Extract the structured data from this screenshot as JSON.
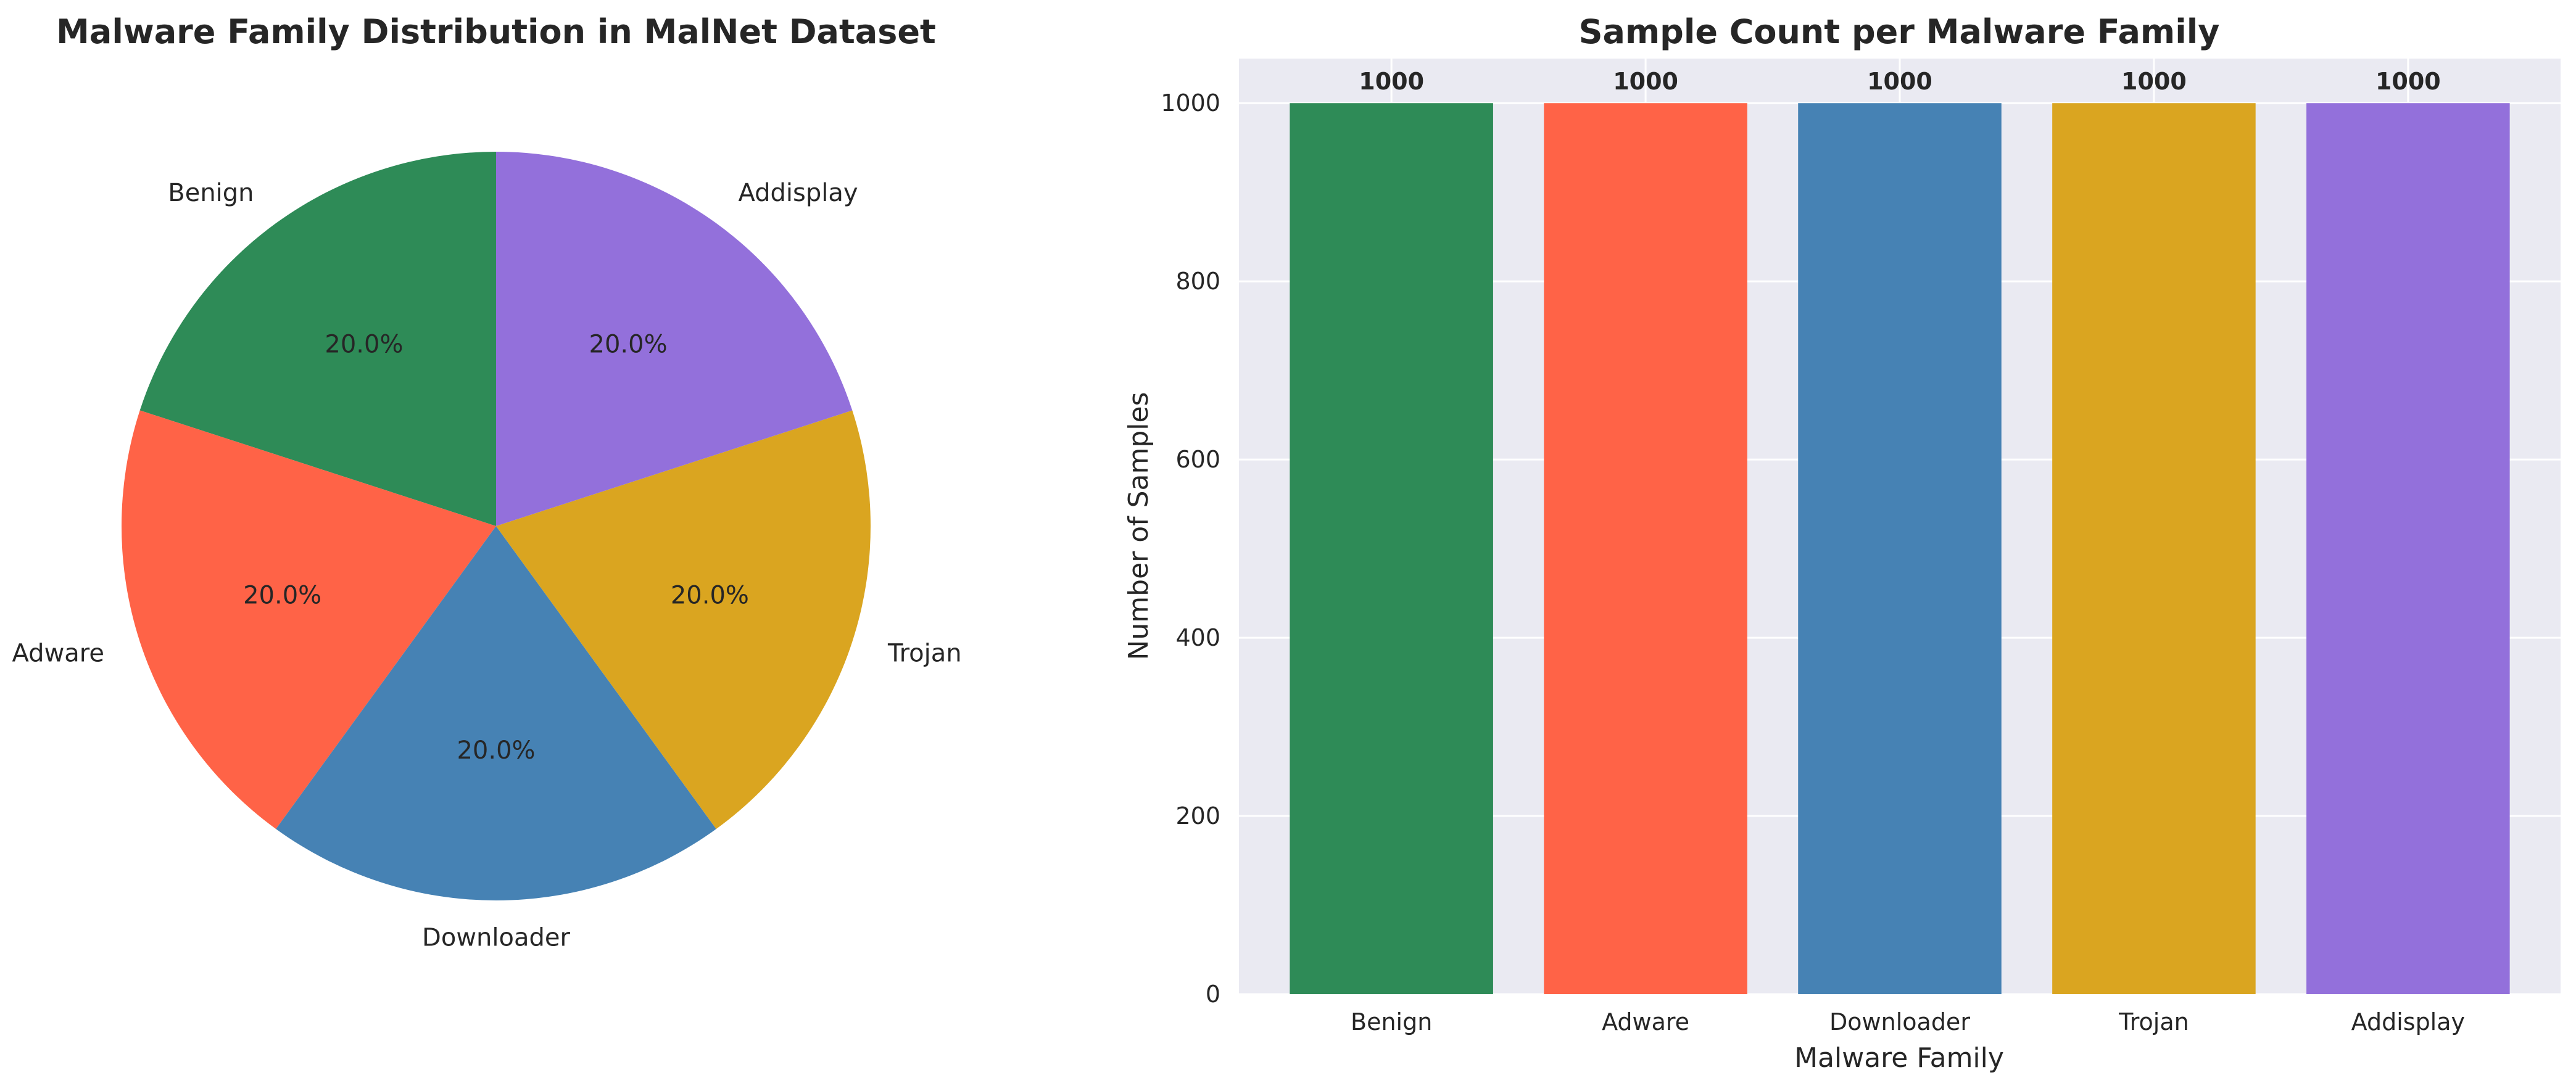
{
  "chart_data": [
    {
      "type": "pie",
      "title": "Malware Family Distribution in MalNet Dataset",
      "labels": [
        "Benign",
        "Adware",
        "Downloader",
        "Trojan",
        "Addisplay"
      ],
      "values": [
        1000,
        1000,
        1000,
        1000,
        1000
      ],
      "percent_labels": [
        "20.0%",
        "20.0%",
        "20.0%",
        "20.0%",
        "20.0%"
      ],
      "start_angle_deg": 90,
      "direction": "counterclockwise",
      "colors": [
        "#2e8b57",
        "#ff6347",
        "#4682b4",
        "#daa520",
        "#9370db"
      ]
    },
    {
      "type": "bar",
      "title": "Sample Count per Malware Family",
      "categories": [
        "Benign",
        "Adware",
        "Downloader",
        "Trojan",
        "Addisplay"
      ],
      "values": [
        1000,
        1000,
        1000,
        1000,
        1000
      ],
      "value_labels": [
        "1000",
        "1000",
        "1000",
        "1000",
        "1000"
      ],
      "xlabel": "Malware Family",
      "ylabel": "Number of Samples",
      "ylim": [
        0,
        1050
      ],
      "yticks": [
        0,
        200,
        400,
        600,
        800,
        1000
      ],
      "grid": true,
      "colors": [
        "#2e8b57",
        "#ff6347",
        "#4682b4",
        "#daa520",
        "#9370db"
      ],
      "plot_background": "#eaeaf2"
    }
  ]
}
